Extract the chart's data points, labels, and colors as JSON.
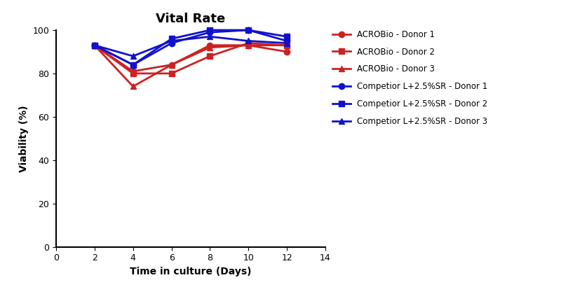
{
  "title": "Vital Rate",
  "xlabel": "Time in culture (Days)",
  "ylabel": "Viability (%)",
  "xlim": [
    0,
    14
  ],
  "ylim": [
    0,
    100
  ],
  "xticks": [
    0,
    2,
    4,
    6,
    8,
    10,
    12,
    14
  ],
  "yticks": [
    0,
    20,
    40,
    60,
    80,
    100
  ],
  "days": [
    2,
    4,
    6,
    8,
    10,
    12
  ],
  "acrobio_donor1": [
    93,
    81,
    84,
    93,
    93,
    90
  ],
  "acrobio_donor2": [
    93,
    80,
    80,
    88,
    94,
    93
  ],
  "acrobio_donor3": [
    93,
    74,
    84,
    92,
    93,
    93
  ],
  "comp_donor1": [
    93,
    84,
    94,
    99,
    100,
    95
  ],
  "comp_donor2": [
    93,
    84,
    96,
    100,
    100,
    97
  ],
  "comp_donor3": [
    93,
    88,
    95,
    97,
    95,
    94
  ],
  "red_color": "#CC2222",
  "blue_color": "#1111CC",
  "legend_labels": [
    "ACROBio - Donor 1",
    "ACROBio - Donor 2",
    "ACROBio - Donor 3",
    "Competior L+2.5%SR - Donor 1",
    "Competior L+2.5%SR - Donor 2",
    "Competior L+2.5%SR - Donor 3"
  ],
  "title_fontsize": 13,
  "label_fontsize": 10,
  "tick_fontsize": 9,
  "legend_fontsize": 8.5,
  "linewidth": 2.0,
  "markersize": 6,
  "fig_width": 8.0,
  "fig_height": 4.3
}
